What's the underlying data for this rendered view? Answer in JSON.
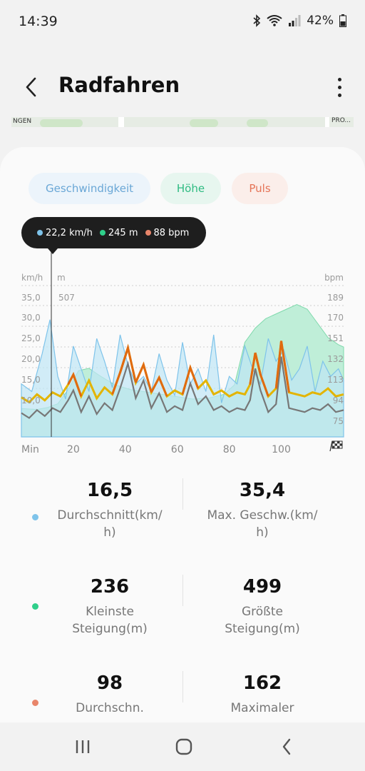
{
  "status": {
    "time": "14:39",
    "battery": "42%"
  },
  "header": {
    "title": "Radfahren"
  },
  "map": {
    "label_left": "NGEN",
    "label_right": "PRO..."
  },
  "chips": {
    "speed": "Geschwindigkeit",
    "altitude": "Höhe",
    "heart_rate": "Puls"
  },
  "tooltip": {
    "speed": "22,2 km/h",
    "altitude": "245 m",
    "heart_rate": "88 bpm"
  },
  "colors": {
    "speed": "#7ec3ea",
    "altitude": "#2fcf8a",
    "heart_rate": "#e8856a",
    "chart_speed_fill": "#bfe6f5",
    "chart_alt_fill": "#bfeed8",
    "chart_hr_line": "#e3b400",
    "chart_hr_peak": "#e06a10",
    "chart_gray": "#777777"
  },
  "chart_data": {
    "type": "area",
    "left_unit": "km/h",
    "left_unit2": "m",
    "right_unit": "bpm",
    "alt_top_label": "507",
    "left_ticks": [
      "35,0",
      "30,0",
      "25,0",
      "20,0",
      "15,0",
      "10,0"
    ],
    "right_ticks": [
      "189",
      "170",
      "151",
      "132",
      "113",
      "94",
      "75"
    ],
    "x_label": "Min",
    "x_ticks": [
      "20",
      "40",
      "60",
      "80",
      "100"
    ],
    "xlim": [
      0,
      124
    ],
    "ylim_speed": [
      0,
      40
    ],
    "ylim_hr": [
      55,
      208
    ],
    "series": [
      {
        "name": "Geschwindigkeit",
        "unit": "km/h",
        "x": [
          0,
          4,
          8,
          11,
          14,
          17,
          20,
          23,
          26,
          29,
          32,
          35,
          38,
          41,
          44,
          47,
          50,
          53,
          56,
          59,
          62,
          65,
          68,
          71,
          74,
          77,
          80,
          83,
          86,
          89,
          92,
          95,
          98,
          101,
          104,
          107,
          110,
          113,
          116,
          119,
          122,
          124
        ],
        "values": [
          14,
          12,
          22,
          31,
          16,
          10,
          24,
          18,
          12,
          26,
          20,
          13,
          27,
          19,
          14,
          16,
          12,
          22,
          15,
          11,
          25,
          14,
          18,
          12,
          27,
          9,
          16,
          14,
          24,
          18,
          14,
          26,
          20,
          23,
          15,
          18,
          24,
          12,
          20,
          16,
          18,
          15
        ]
      },
      {
        "name": "Höhe",
        "unit": "m",
        "x": [
          0,
          6,
          10,
          14,
          18,
          22,
          26,
          30,
          36,
          42,
          48,
          54,
          60,
          66,
          72,
          78,
          82,
          86,
          90,
          94,
          98,
          102,
          106,
          110,
          114,
          118,
          122,
          124
        ],
        "values": [
          260,
          258,
          262,
          270,
          300,
          340,
          345,
          330,
          310,
          300,
          295,
          290,
          285,
          280,
          282,
          290,
          310,
          400,
          430,
          450,
          460,
          470,
          480,
          470,
          440,
          410,
          395,
          390
        ]
      },
      {
        "name": "Puls",
        "unit": "bpm",
        "x": [
          0,
          3,
          6,
          9,
          12,
          15,
          18,
          20,
          23,
          26,
          29,
          32,
          35,
          38,
          41,
          44,
          47,
          50,
          53,
          56,
          59,
          62,
          65,
          68,
          71,
          74,
          77,
          80,
          83,
          86,
          88,
          90,
          92,
          95,
          98,
          100,
          103,
          106,
          109,
          112,
          115,
          118,
          121,
          124
        ],
        "values": [
          95,
          90,
          98,
          92,
          100,
          96,
          108,
          118,
          96,
          112,
          94,
          105,
          98,
          120,
          145,
          110,
          128,
          100,
          115,
          96,
          102,
          98,
          125,
          104,
          112,
          98,
          102,
          96,
          100,
          98,
          108,
          140,
          118,
          96,
          104,
          152,
          100,
          98,
          96,
          100,
          98,
          104,
          96,
          98
        ]
      }
    ]
  },
  "stats": [
    {
      "left": {
        "value": "16,5",
        "label_1": "Durchschnitt(km/",
        "label_2": "h)"
      },
      "right": {
        "value": "35,4",
        "label_1": "Max. Geschw.(km/",
        "label_2": "h)"
      }
    },
    {
      "left": {
        "value": "236",
        "label_1": "Kleinste",
        "label_2": "Steigung(m)"
      },
      "right": {
        "value": "499",
        "label_1": "Größte",
        "label_2": "Steigung(m)"
      }
    },
    {
      "left": {
        "value": "98",
        "label_1": "Durchschn.",
        "label_2": ""
      },
      "right": {
        "value": "162",
        "label_1": "Maximaler",
        "label_2": ""
      }
    }
  ]
}
